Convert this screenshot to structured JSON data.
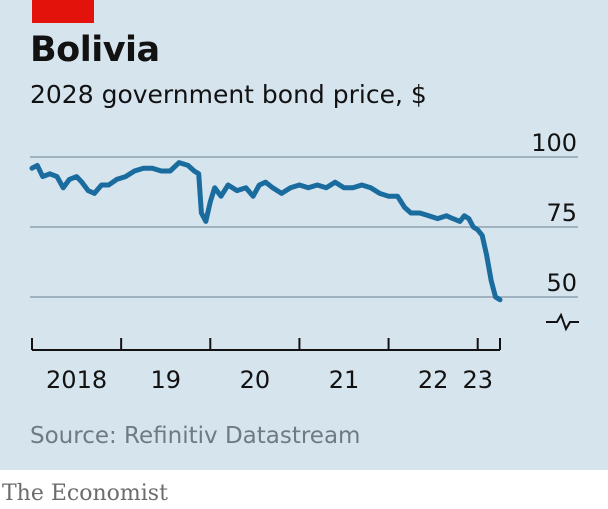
{
  "title": "Bolivia",
  "subtitle": "2028 government bond price, $",
  "source": "Source: Refinitiv Datastream",
  "brand": "The Economist",
  "colors": {
    "line": "#1a6b9e",
    "grid": "#9fb2be",
    "panel": "#d6e4ee",
    "accent": "#e3120b"
  },
  "icons": {
    "axis_break": "axis-break-icon"
  },
  "chart_data": {
    "type": "line",
    "title": "Bolivia",
    "ylabel": "2028 government bond price, $",
    "xlabel": "",
    "ylim": [
      30,
      100
    ],
    "yticks": [
      100,
      75,
      50
    ],
    "xlim": [
      2018.0,
      2023.25
    ],
    "xtick_labels": [
      {
        "x": 2018.5,
        "label": "2018"
      },
      {
        "x": 2019.5,
        "label": "19"
      },
      {
        "x": 2020.5,
        "label": "20"
      },
      {
        "x": 2021.5,
        "label": "21"
      },
      {
        "x": 2022.5,
        "label": "22"
      },
      {
        "x": 2023.0,
        "label": "23"
      }
    ],
    "year_boundaries": [
      2018.0,
      2019.0,
      2020.0,
      2021.0,
      2022.0,
      2023.0,
      2023.25
    ],
    "grid": true,
    "series": [
      {
        "values": [
          [
            2018.0,
            96
          ],
          [
            2018.06,
            97
          ],
          [
            2018.12,
            93
          ],
          [
            2018.2,
            94
          ],
          [
            2018.28,
            93
          ],
          [
            2018.35,
            89
          ],
          [
            2018.42,
            92
          ],
          [
            2018.5,
            93
          ],
          [
            2018.56,
            91
          ],
          [
            2018.63,
            88
          ],
          [
            2018.7,
            87
          ],
          [
            2018.78,
            90
          ],
          [
            2018.86,
            90
          ],
          [
            2018.95,
            92
          ],
          [
            2019.05,
            93
          ],
          [
            2019.15,
            95
          ],
          [
            2019.25,
            96
          ],
          [
            2019.35,
            96
          ],
          [
            2019.45,
            95
          ],
          [
            2019.55,
            95
          ],
          [
            2019.65,
            98
          ],
          [
            2019.75,
            97
          ],
          [
            2019.82,
            95
          ],
          [
            2019.87,
            94
          ],
          [
            2019.9,
            80
          ],
          [
            2019.95,
            77
          ],
          [
            2020.0,
            84
          ],
          [
            2020.05,
            89
          ],
          [
            2020.12,
            86
          ],
          [
            2020.2,
            90
          ],
          [
            2020.3,
            88
          ],
          [
            2020.4,
            89
          ],
          [
            2020.48,
            86
          ],
          [
            2020.55,
            90
          ],
          [
            2020.62,
            91
          ],
          [
            2020.7,
            89
          ],
          [
            2020.8,
            87
          ],
          [
            2020.9,
            89
          ],
          [
            2021.0,
            90
          ],
          [
            2021.1,
            89
          ],
          [
            2021.2,
            90
          ],
          [
            2021.3,
            89
          ],
          [
            2021.4,
            91
          ],
          [
            2021.5,
            89
          ],
          [
            2021.6,
            89
          ],
          [
            2021.7,
            90
          ],
          [
            2021.8,
            89
          ],
          [
            2021.9,
            87
          ],
          [
            2022.0,
            86
          ],
          [
            2022.1,
            86
          ],
          [
            2022.18,
            82
          ],
          [
            2022.25,
            80
          ],
          [
            2022.35,
            80
          ],
          [
            2022.45,
            79
          ],
          [
            2022.55,
            78
          ],
          [
            2022.65,
            79
          ],
          [
            2022.72,
            78
          ],
          [
            2022.8,
            77
          ],
          [
            2022.85,
            79
          ],
          [
            2022.9,
            78
          ],
          [
            2022.95,
            75
          ],
          [
            2023.0,
            74
          ],
          [
            2023.05,
            72
          ],
          [
            2023.1,
            65
          ],
          [
            2023.15,
            56
          ],
          [
            2023.2,
            50
          ],
          [
            2023.25,
            49
          ]
        ]
      }
    ]
  }
}
